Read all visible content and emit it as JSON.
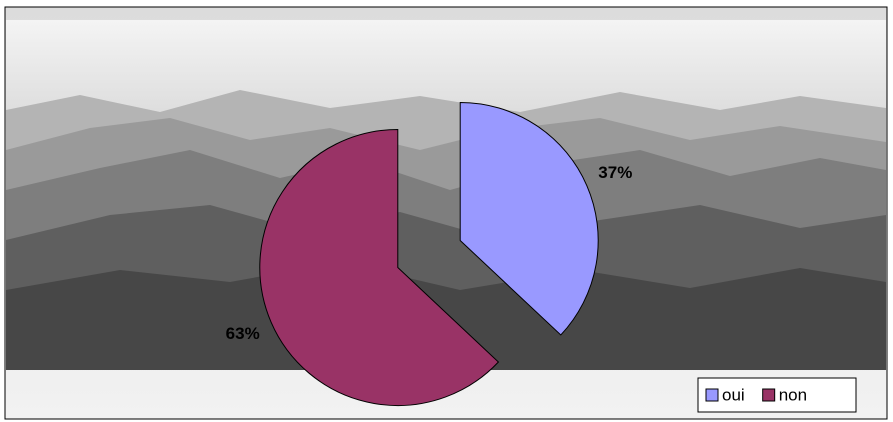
{
  "chart_data": {
    "type": "pie",
    "categories": [
      "oui",
      "non"
    ],
    "values": [
      37,
      63
    ],
    "value_labels": [
      "37%",
      "63%"
    ],
    "colors": [
      "#9999ff",
      "#993366"
    ],
    "explode": true,
    "legend": "bottom-right"
  }
}
